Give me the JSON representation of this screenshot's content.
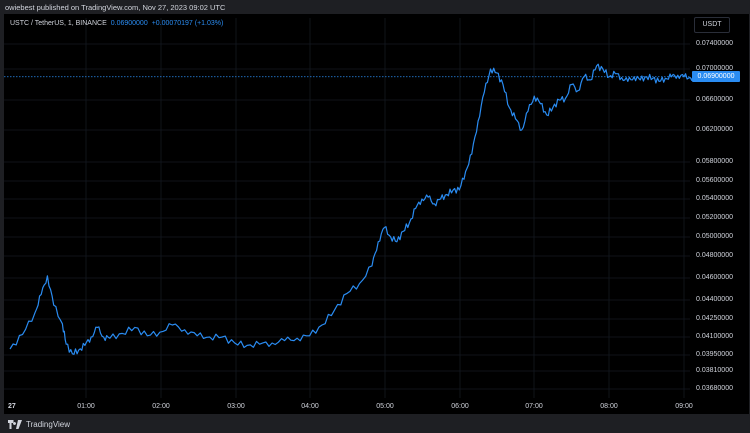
{
  "header": {
    "published_text": "owiebest published on TradingView.com, Nov 27, 2023 09:02 UTC"
  },
  "legend": {
    "symbol": "USTC / TetherUS, 1, BINANCE",
    "last_price": "0.06900000",
    "change": "+0.00070197 (+1.03%)"
  },
  "axis_currency": "USDT",
  "footer": {
    "brand": "TradingView"
  },
  "colors": {
    "line": "#2a8cf2",
    "tag": "#2a8cf2",
    "background": "#000000"
  },
  "chart_data": {
    "type": "line",
    "title": "USTC / TetherUS, 1, BINANCE",
    "last_price": 0.069,
    "last_price_label": "0.06900000",
    "y_tick_labels": [
      "0.07400000",
      "0.07000000",
      "0.06600000",
      "0.06200000",
      "0.05800000",
      "0.05600000",
      "0.05400000",
      "0.05200000",
      "0.05000000",
      "0.04800000",
      "0.04600000",
      "0.04400000",
      "0.04250000",
      "0.04100000",
      "0.03950000",
      "0.03810000",
      "0.03680000"
    ],
    "x_tick_labels": [
      "27",
      "01:00",
      "02:00",
      "03:00",
      "04:00",
      "05:00",
      "06:00",
      "07:00",
      "08:00",
      "09:00"
    ],
    "x_unit": "minutes since 00:00",
    "series": [
      {
        "name": "USTC/USDT",
        "x": [
          0,
          10,
          20,
          25,
          30,
          35,
          42,
          45,
          50,
          55,
          60,
          65,
          70,
          75,
          80,
          90,
          100,
          110,
          120,
          130,
          140,
          150,
          160,
          170,
          180,
          190,
          200,
          210,
          220,
          230,
          240,
          250,
          260,
          270,
          280,
          290,
          295,
          300,
          305,
          310,
          315,
          320,
          325,
          330,
          335,
          340,
          345,
          350,
          355,
          360,
          365,
          370,
          375,
          380,
          385,
          390,
          395,
          400,
          405,
          410,
          415,
          420,
          425,
          430,
          435,
          440,
          445,
          450,
          455,
          460,
          465,
          470,
          475,
          480,
          485,
          490,
          495,
          500,
          505,
          510,
          515,
          520,
          525,
          530,
          535,
          540,
          545,
          550
        ],
        "y": [
          0.04,
          0.0412,
          0.043,
          0.0445,
          0.0462,
          0.0436,
          0.0421,
          0.0404,
          0.0396,
          0.0399,
          0.0403,
          0.041,
          0.0418,
          0.041,
          0.0409,
          0.0413,
          0.0418,
          0.0411,
          0.0414,
          0.042,
          0.0416,
          0.0411,
          0.041,
          0.041,
          0.0405,
          0.0403,
          0.0404,
          0.0405,
          0.0407,
          0.0409,
          0.0411,
          0.042,
          0.0432,
          0.0446,
          0.0455,
          0.0471,
          0.0495,
          0.051,
          0.05,
          0.0495,
          0.0506,
          0.0515,
          0.053,
          0.054,
          0.0542,
          0.0535,
          0.054,
          0.0545,
          0.055,
          0.055,
          0.057,
          0.059,
          0.0632,
          0.067,
          0.07,
          0.0695,
          0.068,
          0.065,
          0.0635,
          0.062,
          0.0645,
          0.0665,
          0.0655,
          0.064,
          0.065,
          0.066,
          0.0662,
          0.068,
          0.0672,
          0.069,
          0.0686,
          0.0705,
          0.07,
          0.069,
          0.0694,
          0.0689,
          0.0684,
          0.069,
          0.0686,
          0.069,
          0.0688,
          0.0684,
          0.0688,
          0.069,
          0.0692,
          0.069,
          0.0689,
          0.069
        ]
      }
    ]
  }
}
